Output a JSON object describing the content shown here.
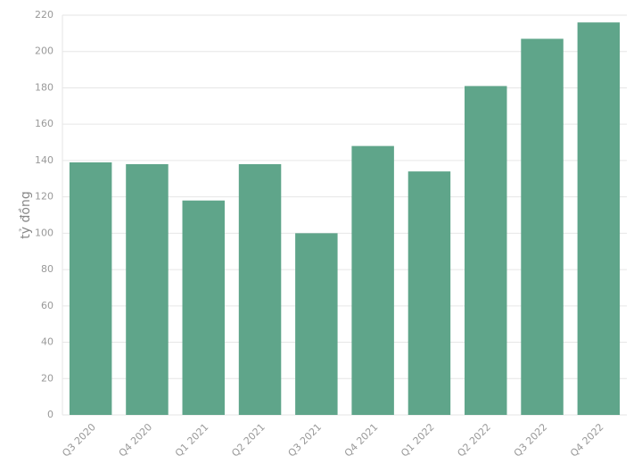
{
  "chart_data": {
    "type": "bar",
    "y_label": "tỷ đồng",
    "categories": [
      "Q3 2020",
      "Q4 2020",
      "Q1 2021",
      "Q2 2021",
      "Q3 2021",
      "Q4 2021",
      "Q1 2022",
      "Q2 2022",
      "Q3 2022",
      "Q4 2022"
    ],
    "values": [
      139,
      138,
      118,
      138,
      100,
      148,
      134,
      181,
      207,
      216
    ],
    "color": "#5fa58a",
    "ylim": [
      0,
      220
    ],
    "yticks": [
      0,
      20,
      40,
      60,
      80,
      100,
      120,
      140,
      160,
      180,
      200,
      220
    ],
    "grid": true
  }
}
